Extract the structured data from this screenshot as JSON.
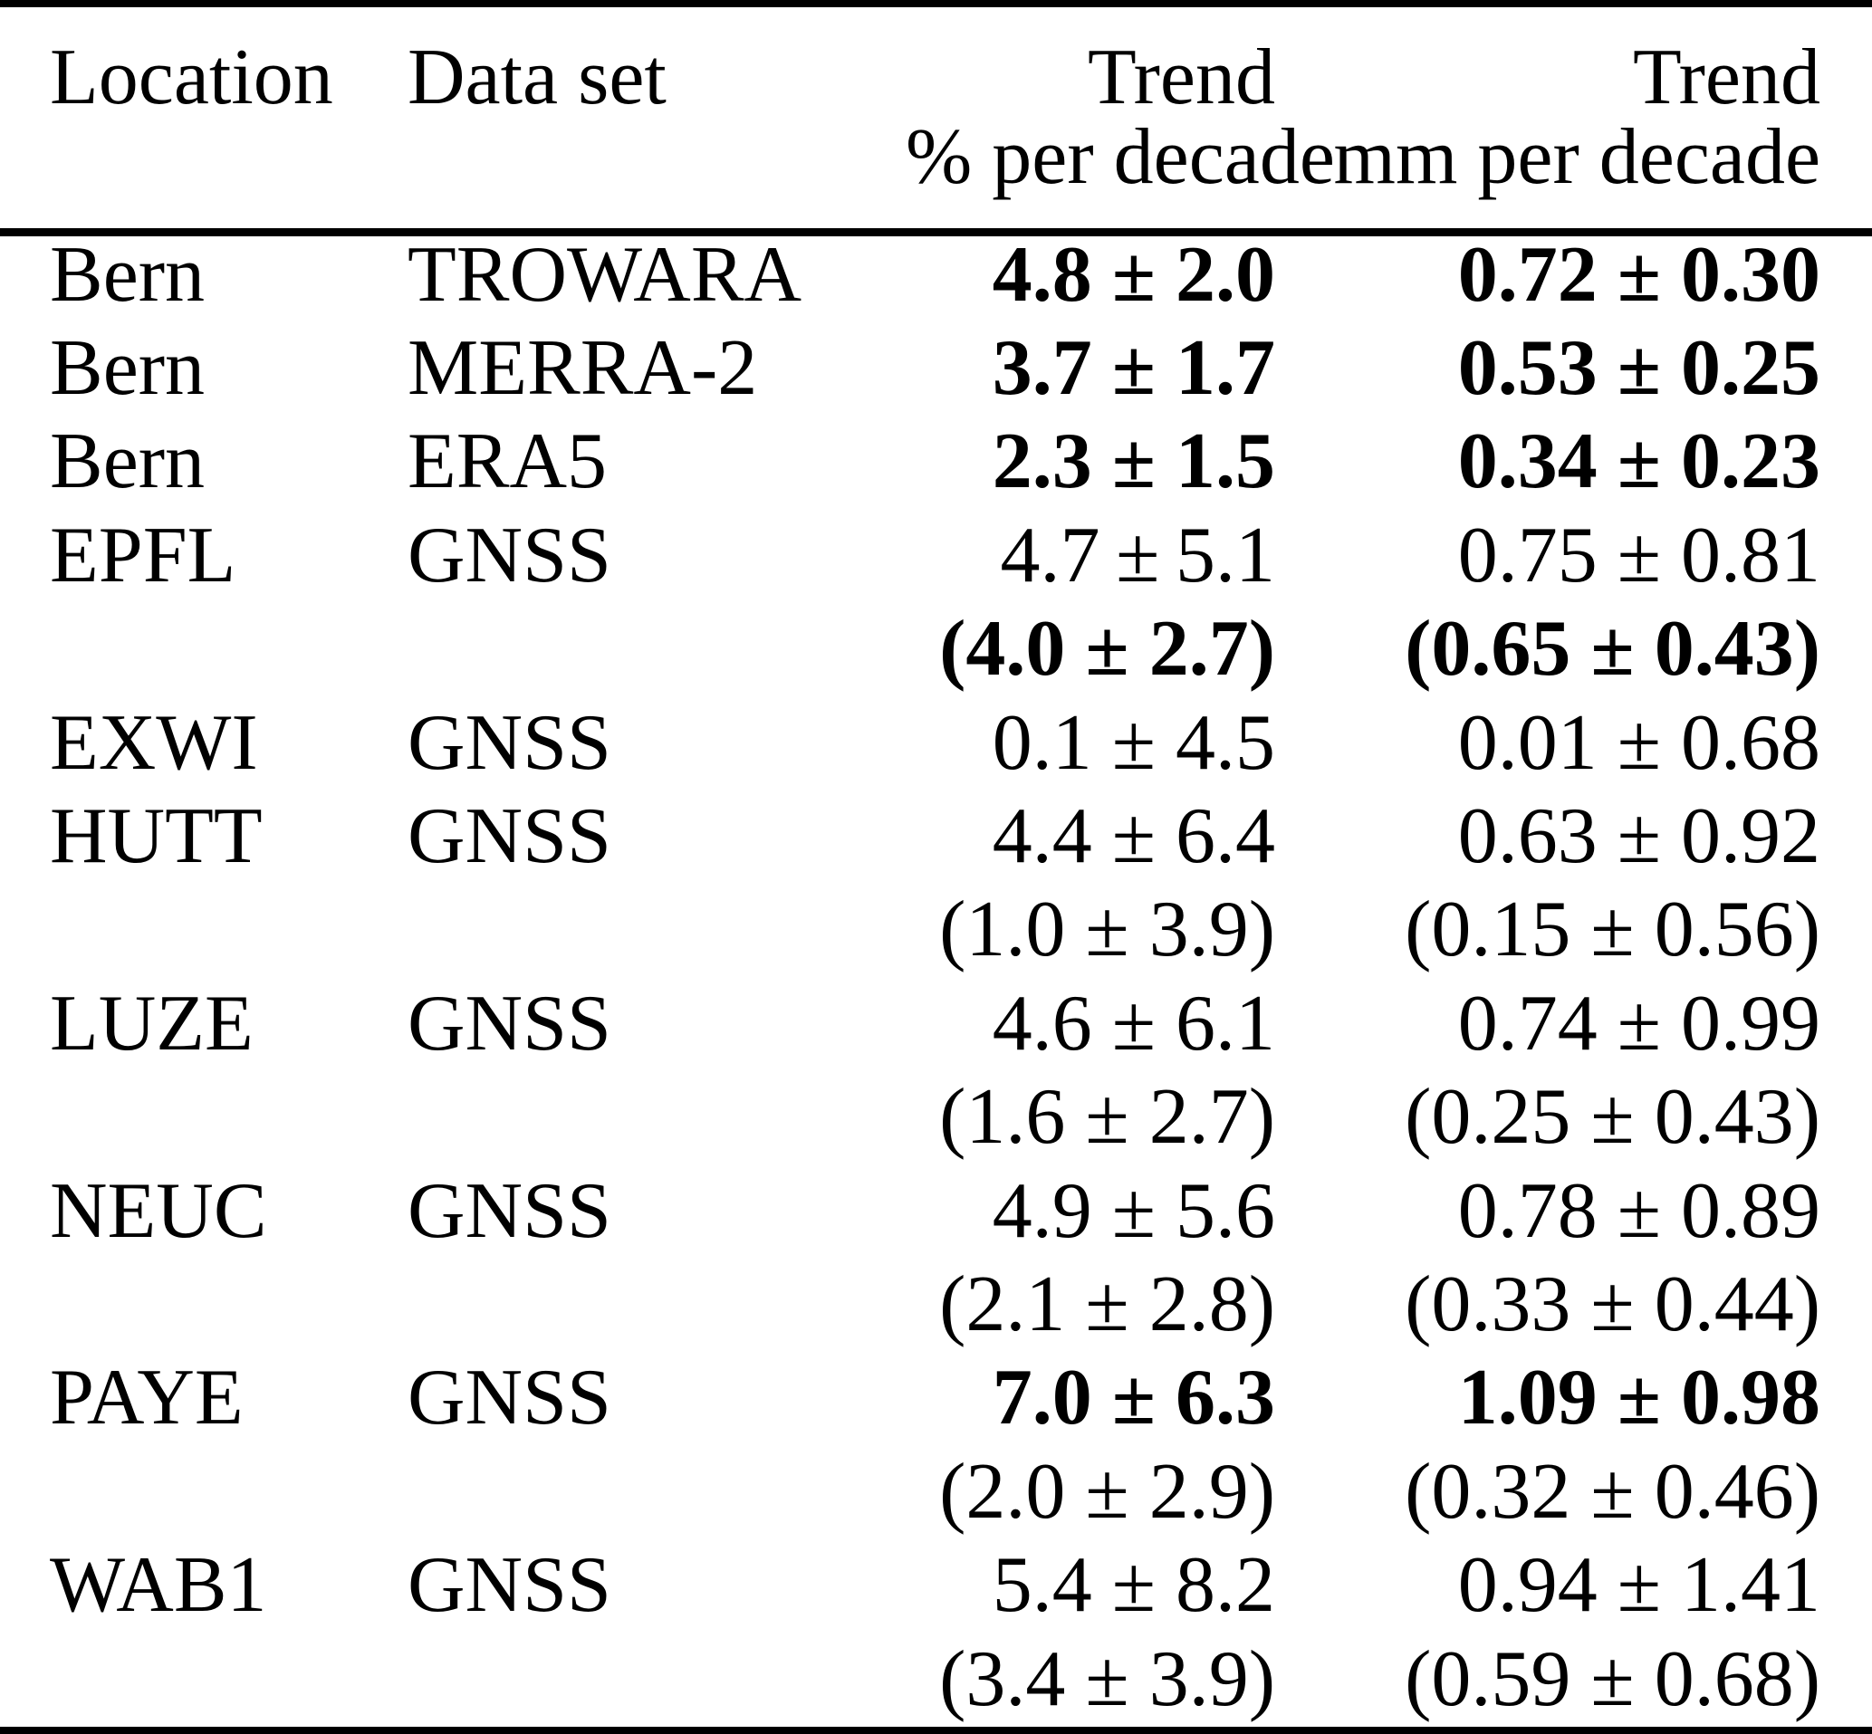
{
  "page": {
    "background": "#ffffff",
    "text_color": "#000000"
  },
  "table": {
    "header": {
      "location": "Location",
      "dataset": "Data set",
      "trend_pct": {
        "title": "Trend",
        "unit": "% per decade"
      },
      "trend_mm": {
        "title": "Trend",
        "unit": "mm per decade"
      }
    },
    "rows": [
      {
        "location": "Bern",
        "dataset": "TROWARA",
        "trend_pct": "4.8 ± 2.0",
        "trend_mm": "0.72 ± 0.30",
        "bold": true
      },
      {
        "location": "Bern",
        "dataset": "MERRA-2",
        "trend_pct": "3.7 ± 1.7",
        "trend_mm": "0.53 ± 0.25",
        "bold": true
      },
      {
        "location": "Bern",
        "dataset": "ERA5",
        "trend_pct": "2.3 ± 1.5",
        "trend_mm": "0.34 ± 0.23",
        "bold": true
      },
      {
        "location": "EPFL",
        "dataset": "GNSS",
        "trend_pct": "4.7 ± 5.1",
        "trend_mm": "0.75 ± 0.81",
        "bold": false
      },
      {
        "location": "",
        "dataset": "",
        "trend_pct": "(4.0 ± 2.7)",
        "trend_mm": "(0.65 ± 0.43)",
        "bold": true
      },
      {
        "location": "EXWI",
        "dataset": "GNSS",
        "trend_pct": "0.1 ± 4.5",
        "trend_mm": "0.01 ± 0.68",
        "bold": false
      },
      {
        "location": "HUTT",
        "dataset": "GNSS",
        "trend_pct": "4.4 ± 6.4",
        "trend_mm": "0.63 ± 0.92",
        "bold": false
      },
      {
        "location": "",
        "dataset": "",
        "trend_pct": "(1.0 ± 3.9)",
        "trend_mm": "(0.15 ± 0.56)",
        "bold": false
      },
      {
        "location": "LUZE",
        "dataset": "GNSS",
        "trend_pct": "4.6 ± 6.1",
        "trend_mm": "0.74 ± 0.99",
        "bold": false
      },
      {
        "location": "",
        "dataset": "",
        "trend_pct": "(1.6 ± 2.7)",
        "trend_mm": "(0.25 ± 0.43)",
        "bold": false
      },
      {
        "location": "NEUC",
        "dataset": "GNSS",
        "trend_pct": "4.9 ± 5.6",
        "trend_mm": "0.78 ± 0.89",
        "bold": false
      },
      {
        "location": "",
        "dataset": "",
        "trend_pct": "(2.1 ± 2.8)",
        "trend_mm": "(0.33 ± 0.44)",
        "bold": false
      },
      {
        "location": "PAYE",
        "dataset": "GNSS",
        "trend_pct": "7.0 ± 6.3",
        "trend_mm": "1.09 ± 0.98",
        "bold": true
      },
      {
        "location": "",
        "dataset": "",
        "trend_pct": "(2.0 ± 2.9)",
        "trend_mm": "(0.32 ± 0.46)",
        "bold": false
      },
      {
        "location": "WAB1",
        "dataset": "GNSS",
        "trend_pct": "5.4 ± 8.2",
        "trend_mm": "0.94 ± 1.41",
        "bold": false
      },
      {
        "location": "",
        "dataset": "",
        "trend_pct": "(3.4 ± 3.9)",
        "trend_mm": "(0.59 ± 0.68)",
        "bold": false
      }
    ]
  }
}
